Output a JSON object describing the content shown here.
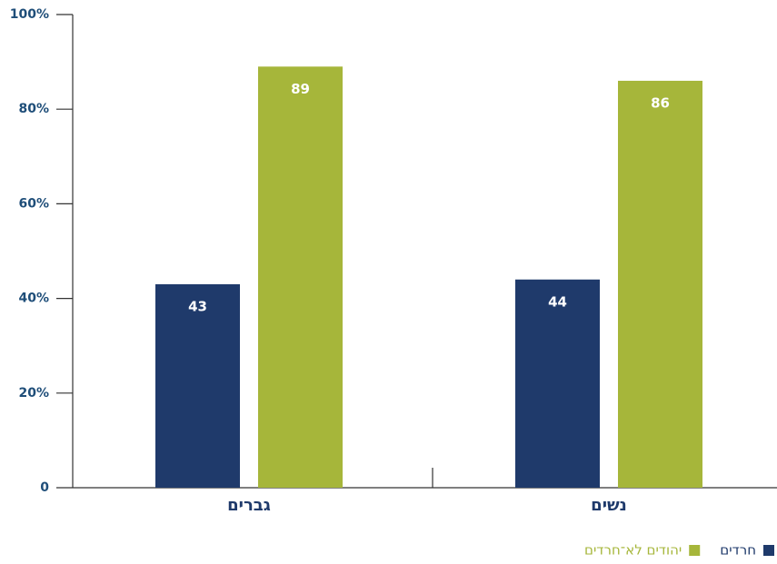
{
  "chart_data": {
    "type": "bar",
    "categories": [
      "גברים",
      "נשים"
    ],
    "series": [
      {
        "name": "חרדים",
        "color": "#1f3a6b",
        "values": [
          43,
          44
        ]
      },
      {
        "name": "יהודים לא־חרדים",
        "color": "#a6b63a",
        "values": [
          89,
          86
        ]
      }
    ],
    "ylim": [
      0,
      100
    ],
    "yticks": [
      0,
      {
        "value": 20,
        "label": "20%"
      },
      {
        "value": 40,
        "label": "40%"
      },
      {
        "value": 60,
        "label": "60%"
      },
      {
        "value": 80,
        "label": "80%"
      },
      {
        "value": 100,
        "label": "100%"
      }
    ],
    "grid": false,
    "legend": "bottom-right"
  }
}
